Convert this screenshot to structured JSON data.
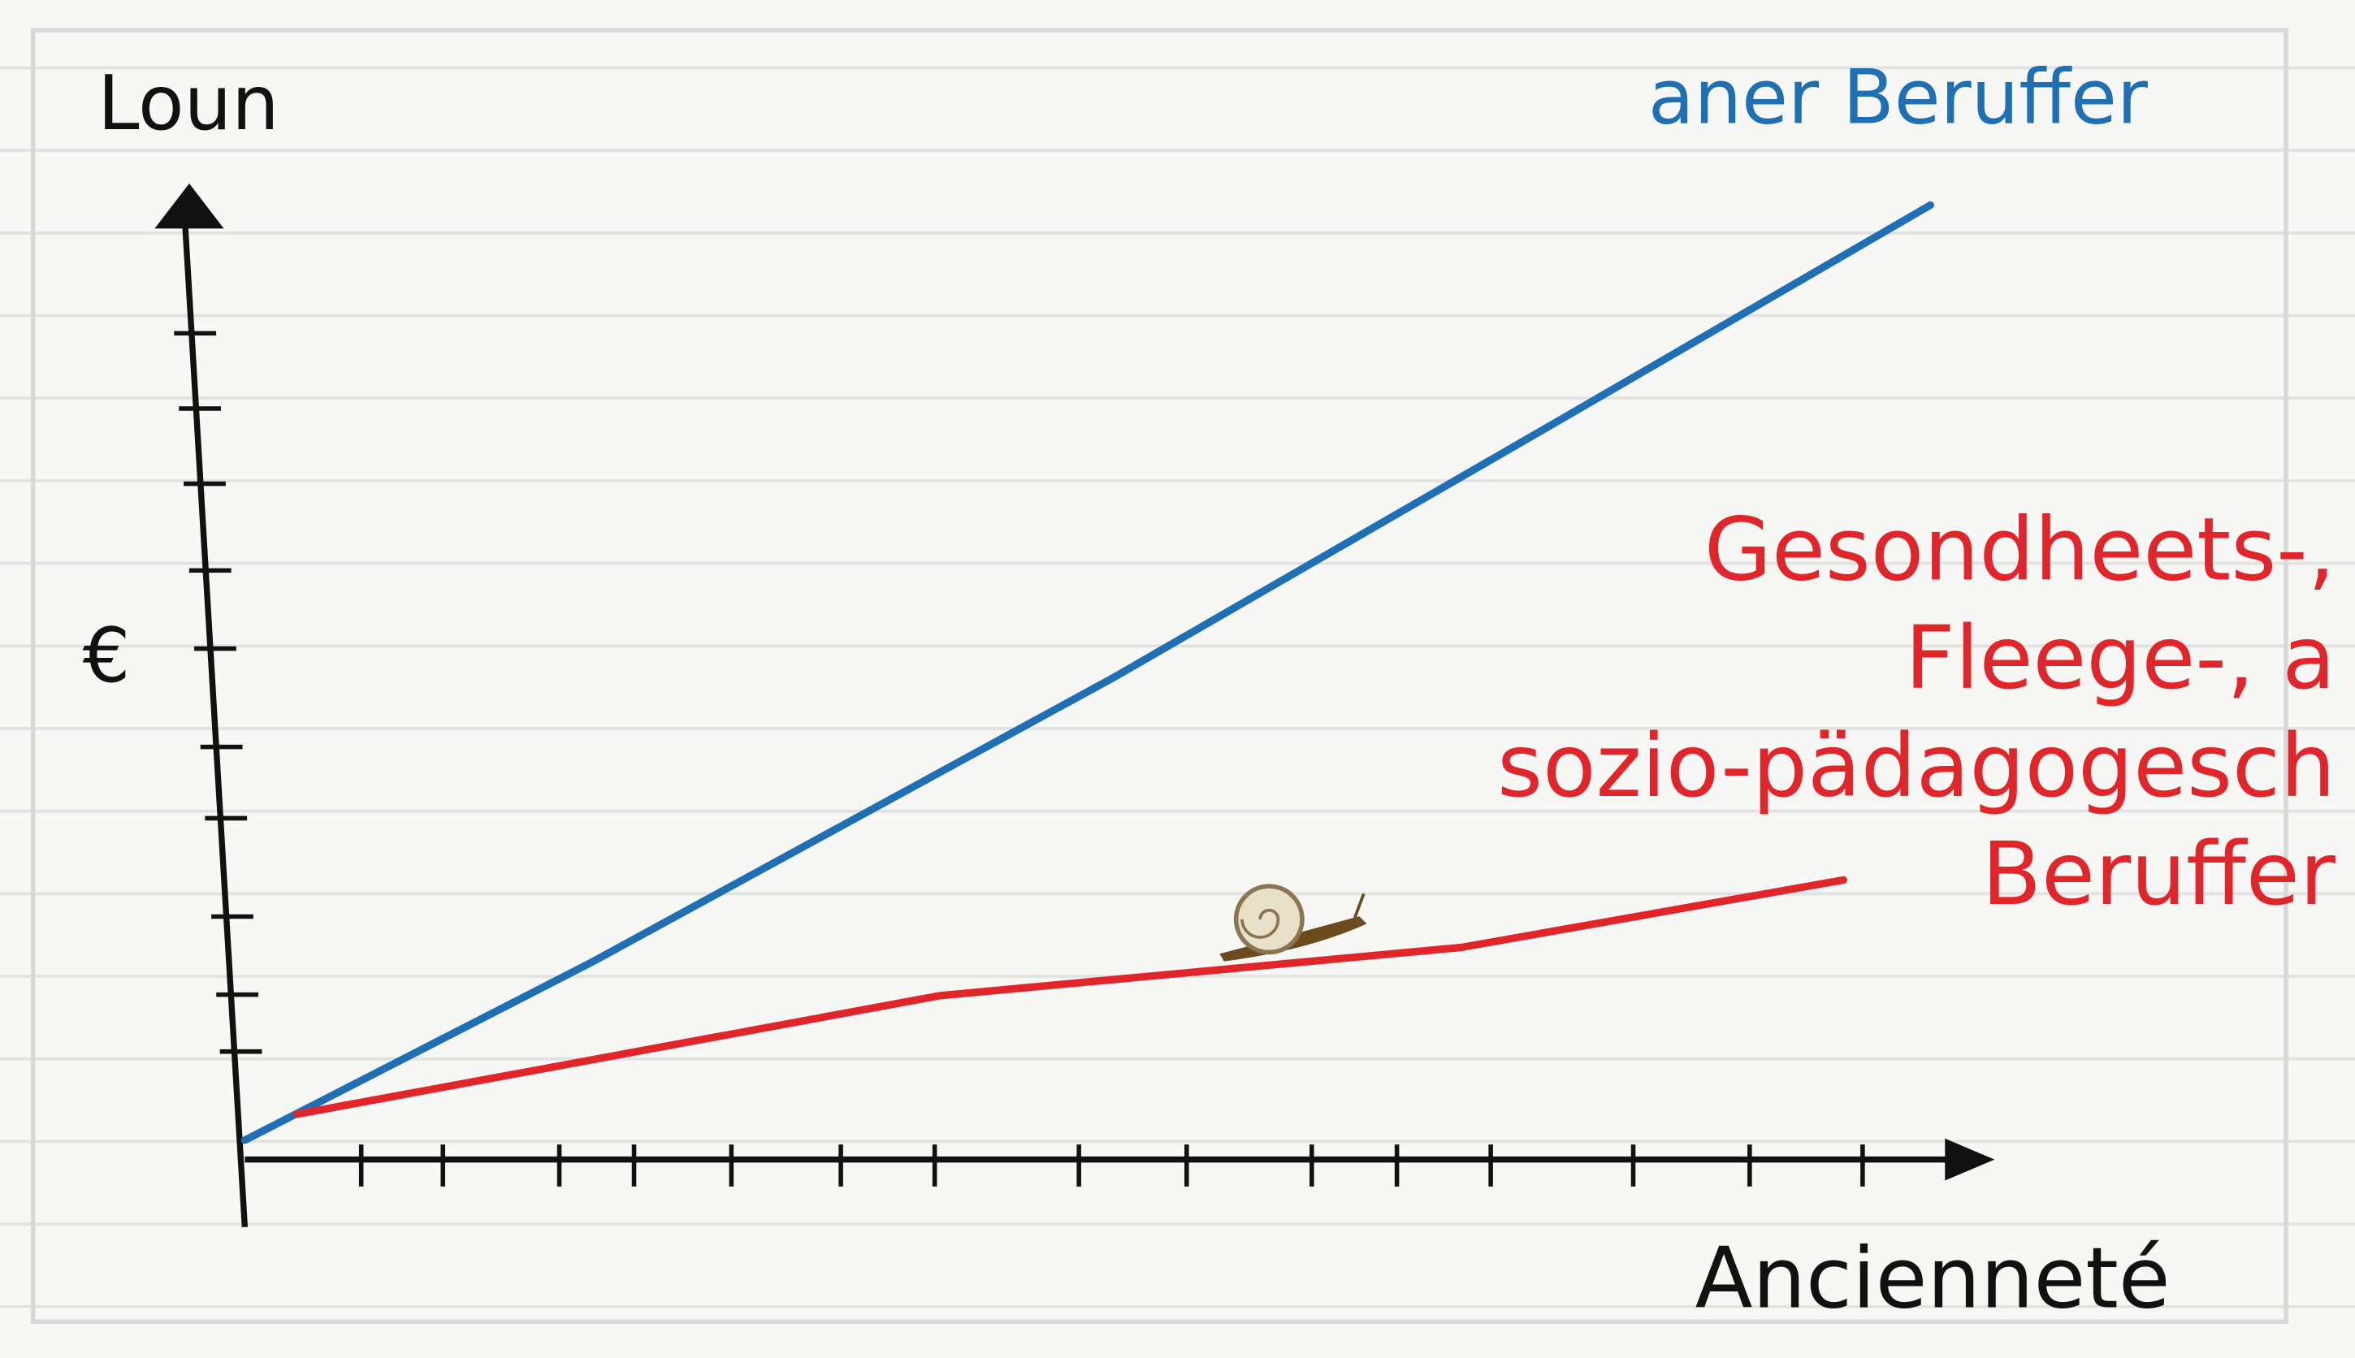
{
  "chart_data": {
    "type": "line",
    "y_label": "Loun",
    "y_unit": "€",
    "x_label": "Ancienneté",
    "xlim": [
      0,
      100
    ],
    "ylim": [
      0,
      100
    ],
    "xticks": [
      6.7,
      11.4,
      18.1,
      22.4,
      28,
      34.3,
      39.7,
      48,
      54.2,
      61.4,
      66.3,
      71.7,
      79.9,
      86.6,
      93.1
    ],
    "yticks": [
      11.2,
      17.1,
      25.2,
      35.4,
      42.8,
      53,
      61.1,
      70.1,
      77.9,
      85.7
    ],
    "series": [
      {
        "name": "aner Beruffer",
        "color": "#1f6fb5",
        "x": [
          0,
          20,
          50,
          75,
          97
        ],
        "values": [
          2,
          20.5,
          50,
          76,
          99
        ]
      },
      {
        "name": [
          "Gesondheets-,",
          "Fleege-, a",
          "sozio-pädagogesch",
          "Beruffer"
        ],
        "color": "#e0262b",
        "x": [
          3,
          40,
          70,
          92
        ],
        "values": [
          4.7,
          17,
          22,
          29
        ]
      }
    ]
  }
}
